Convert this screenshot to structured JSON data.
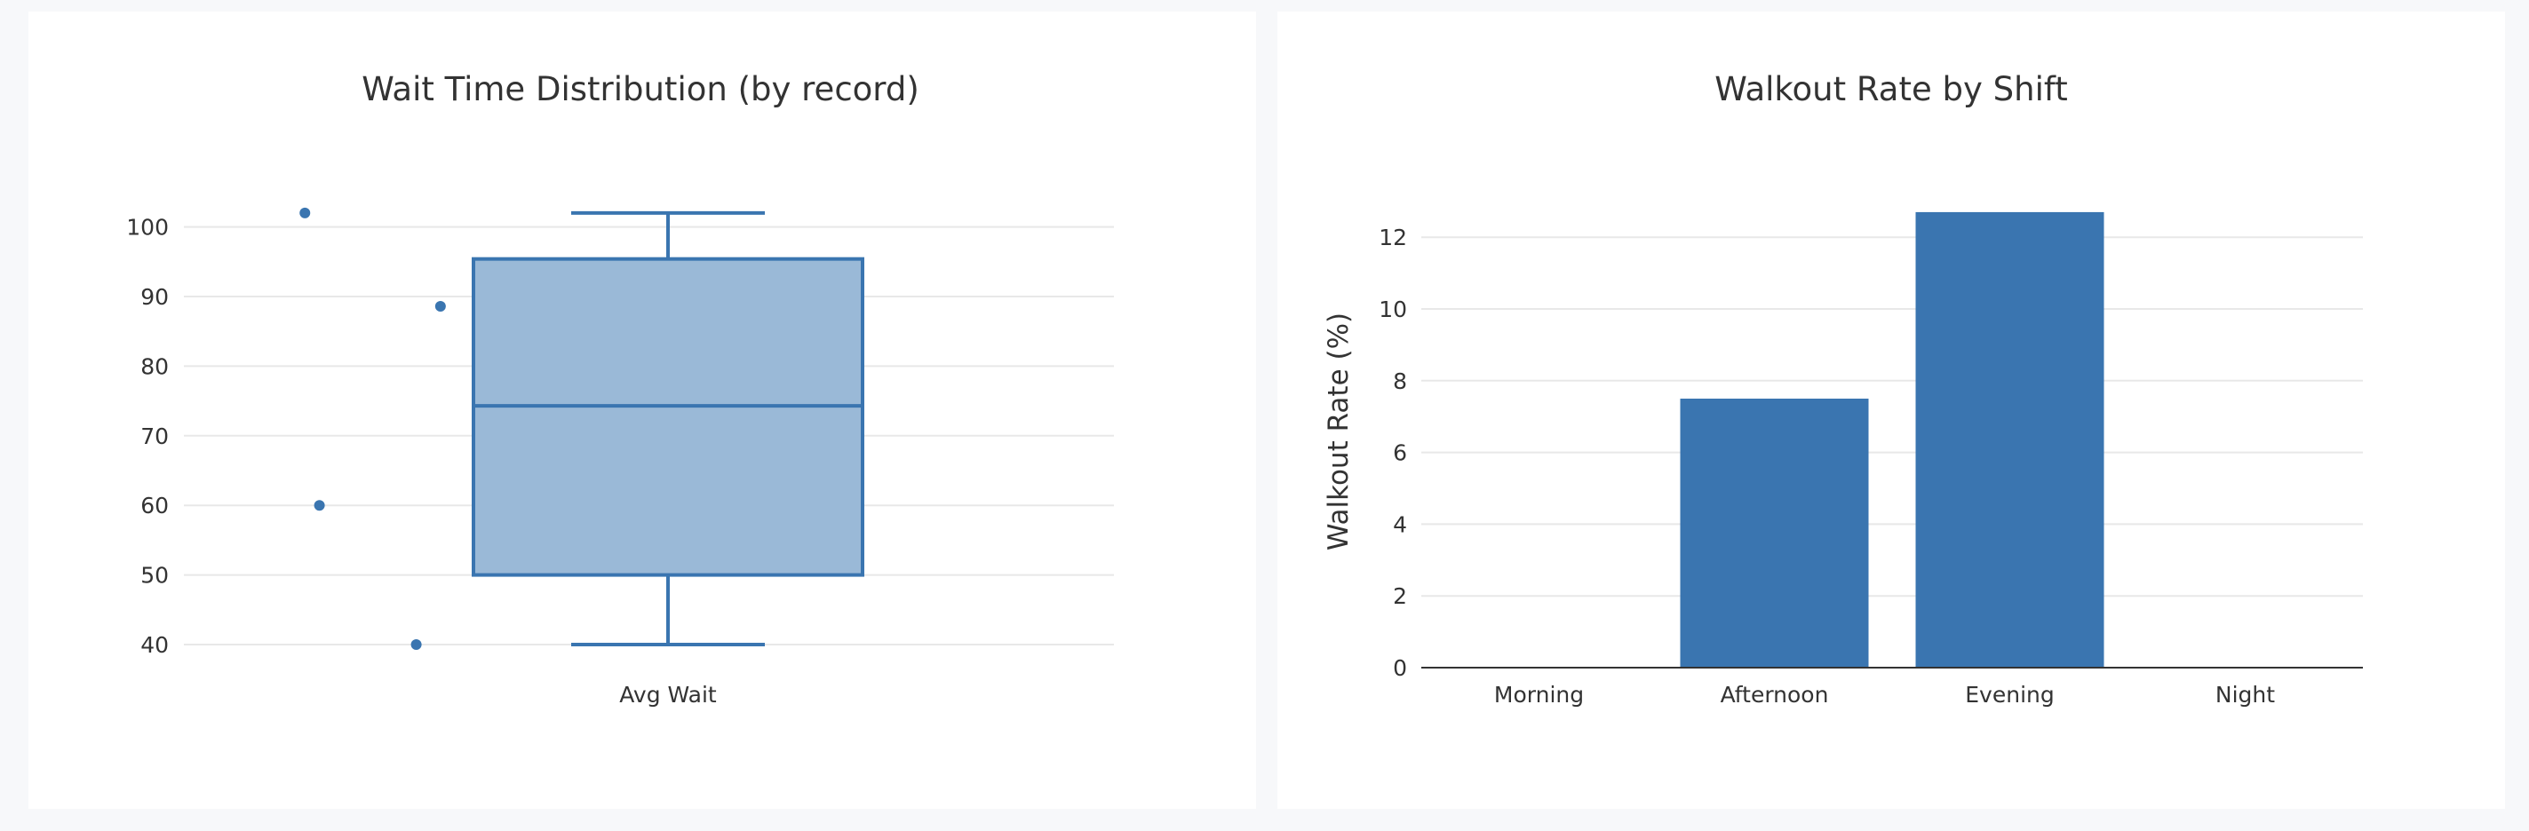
{
  "colors": {
    "mark": "#3a75b0",
    "box_fill": "#9ab9d7",
    "grid": "#e8e8e8",
    "axis": "#333333"
  },
  "chart_data": [
    {
      "type": "box",
      "title": "Wait Time Distribution (by record)",
      "xlabel": "",
      "ylabel": "",
      "categories": [
        "Avg Wait"
      ],
      "box": {
        "lower_whisker": 40,
        "q1": 50,
        "median": 74.3,
        "q3": 95.4,
        "upper_whisker": 102
      },
      "points": [
        {
          "x_offset": -0.75,
          "y": 102
        },
        {
          "x_offset": -0.47,
          "y": 88.6
        },
        {
          "x_offset": -0.72,
          "y": 60
        },
        {
          "x_offset": -0.52,
          "y": 40
        }
      ],
      "yticks": [
        "40",
        "50",
        "60",
        "70",
        "80",
        "90",
        "100"
      ],
      "ylim": [
        37,
        105
      ],
      "grid": true
    },
    {
      "type": "bar",
      "title": "Walkout Rate by Shift",
      "xlabel": "",
      "ylabel": "Walkout Rate (%)",
      "categories": [
        "Morning",
        "Afternoon",
        "Evening",
        "Night"
      ],
      "values": [
        0,
        7.5,
        12.7,
        0
      ],
      "yticks": [
        "0",
        "2",
        "4",
        "6",
        "8",
        "10",
        "12"
      ],
      "ylim": [
        0,
        12.7
      ],
      "grid": true
    }
  ]
}
